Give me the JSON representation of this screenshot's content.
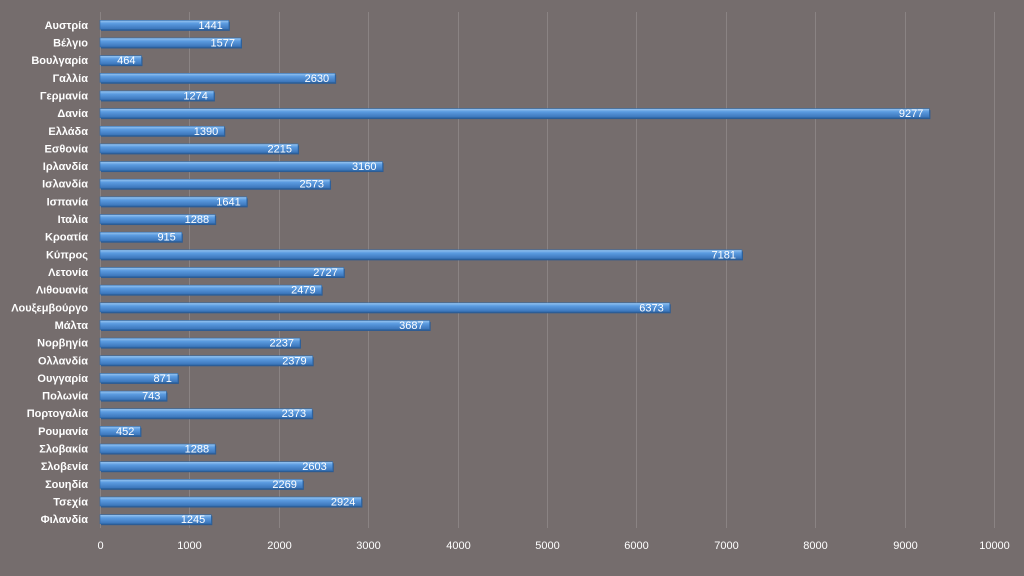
{
  "chart_data": {
    "type": "bar",
    "orientation": "horizontal",
    "title": "",
    "xlabel": "",
    "ylabel": "",
    "xlim": [
      0,
      10000
    ],
    "x_ticks": [
      0,
      1000,
      2000,
      3000,
      4000,
      5000,
      6000,
      7000,
      8000,
      9000,
      10000
    ],
    "grid": true,
    "legend": "none",
    "colors": {
      "background": "#756d6d",
      "bar_fill": "#4f8fd6",
      "bar_highlight": "#8fc0f0",
      "bar_shadow": "#2d5c94",
      "text": "#ffffff",
      "grid": "#8a8383"
    },
    "categories": [
      "Αυστρία",
      "Βέλγιο",
      "Βουλγαρία",
      "Γαλλία",
      "Γερμανία",
      "Δανία",
      "Ελλάδα",
      "Εσθονία",
      "Ιρλανδία",
      "Ισλανδία",
      "Ισπανία",
      "Ιταλία",
      "Κροατία",
      "Κύπρος",
      "Λετονία",
      "Λιθουανία",
      "Λουξεμβούργο",
      "Μάλτα",
      "Νορβηγία",
      "Ολλανδία",
      "Ουγγαρία",
      "Πολωνία",
      "Πορτογαλία",
      "Ρουμανία",
      "Σλοβακία",
      "Σλοβενία",
      "Σουηδία",
      "Τσεχία",
      "Φιλανδία"
    ],
    "values": [
      1441,
      1577,
      464,
      2630,
      1274,
      9277,
      1390,
      2215,
      3160,
      2573,
      1641,
      1288,
      915,
      7181,
      2727,
      2479,
      6373,
      3687,
      2237,
      2379,
      871,
      743,
      2373,
      452,
      1288,
      2603,
      2269,
      2924,
      1245
    ]
  }
}
